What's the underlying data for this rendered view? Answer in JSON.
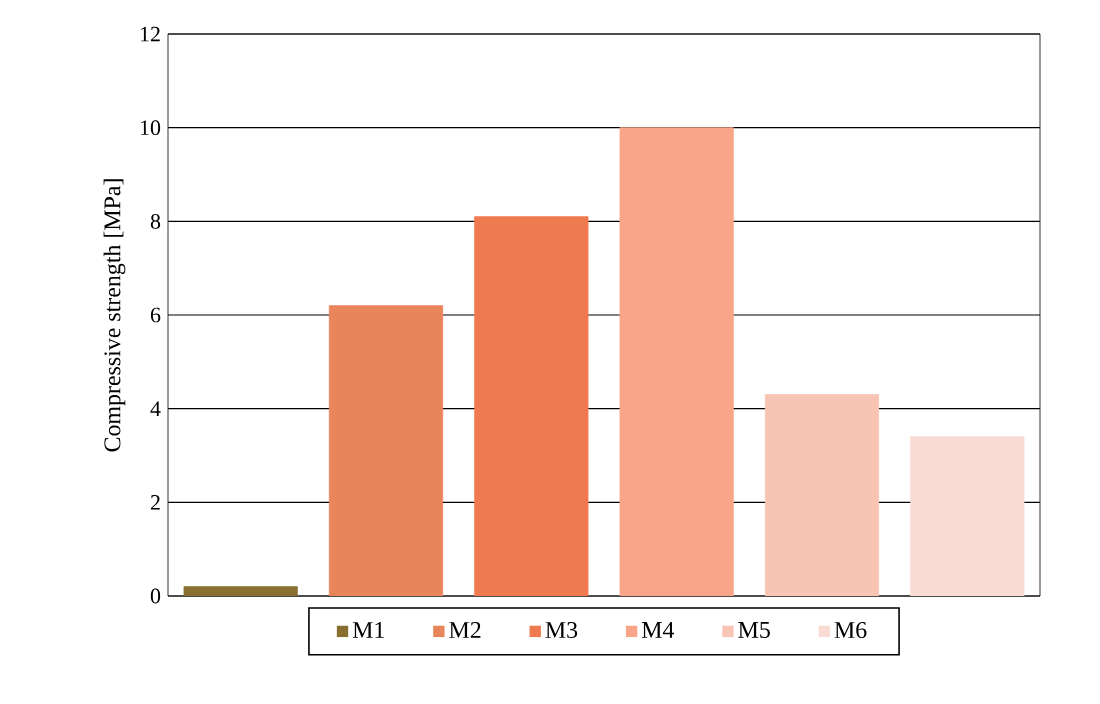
{
  "chart_data": {
    "type": "bar",
    "ylabel": "Compressive strength [MPa]",
    "categories": [
      null,
      null,
      null,
      null,
      null,
      null
    ],
    "series": [
      {
        "name": "M1",
        "color": "#8a7030",
        "values": [
          0.2,
          null,
          null,
          null,
          null,
          null
        ]
      },
      {
        "name": "M2",
        "color": "#e8855a",
        "values": [
          null,
          6.2,
          null,
          null,
          null,
          null
        ]
      },
      {
        "name": "M3",
        "color": "#f07a50",
        "values": [
          null,
          null,
          8.1,
          null,
          null,
          null
        ]
      },
      {
        "name": "M4",
        "color": "#f9a58a",
        "values": [
          null,
          null,
          null,
          10.0,
          null,
          null
        ]
      },
      {
        "name": "M5",
        "color": "#f8c4b4",
        "values": [
          null,
          null,
          null,
          null,
          4.3,
          null
        ]
      },
      {
        "name": "M6",
        "color": "#f8dcd4",
        "values": [
          null,
          null,
          null,
          null,
          null,
          3.4
        ]
      }
    ],
    "ylim": [
      0,
      12
    ],
    "yticks": [
      0,
      2,
      4,
      6,
      8,
      10,
      12
    ],
    "grid": "y",
    "legend": "bottom"
  }
}
